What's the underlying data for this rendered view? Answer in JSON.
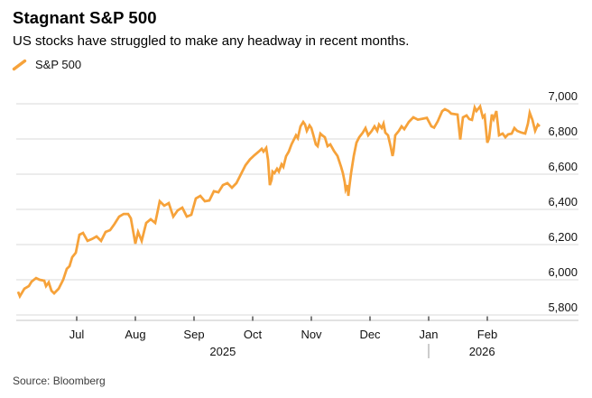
{
  "header": {
    "title": "Stagnant S&P 500",
    "subtitle": "US stocks have struggled to make any headway in recent months."
  },
  "legend": {
    "label": "S&P 500"
  },
  "footer": {
    "source": "Source: Bloomberg"
  },
  "colors": {
    "accent": "#F6A23A",
    "grid": "#D8D8D8",
    "axis_line": "#C6C6C6",
    "tick": "#2B2B2B",
    "label_text": "#111111",
    "year_text": "#767676",
    "divider": "#9B9B9B"
  },
  "chart_data": {
    "type": "line",
    "title": "Stagnant S&P 500",
    "subtitle": "US stocks have struggled to make any headway in recent months.",
    "source": "Source: Bloomberg",
    "legend_position": "top-left",
    "grid": "horizontal",
    "x_axis": {
      "unit": "months (0 = Jun 1 2025, 1 = Jul 1 2025 ... 8 = Feb 1 2026)",
      "ticks": [
        {
          "label": "Jul",
          "m": 1
        },
        {
          "label": "Aug",
          "m": 2
        },
        {
          "label": "Sep",
          "m": 3
        },
        {
          "label": "Oct",
          "m": 4
        },
        {
          "label": "Nov",
          "m": 5
        },
        {
          "label": "Dec",
          "m": 6
        },
        {
          "label": "Jan",
          "m": 7
        },
        {
          "label": "Feb",
          "m": 8
        }
      ],
      "year_labels": [
        {
          "label": "2025",
          "m": 3.49
        },
        {
          "label": "2026",
          "m": 7.91
        }
      ],
      "year_divider_m": 7.0
    },
    "y_axis": {
      "ticks": [
        {
          "value": 7000,
          "label": "7,000"
        },
        {
          "value": 6800,
          "label": "6,800"
        },
        {
          "value": 6600,
          "label": "6,600"
        },
        {
          "value": 6400,
          "label": "6,400"
        },
        {
          "value": 6200,
          "label": "6,200"
        },
        {
          "value": 6000,
          "label": "6,000"
        },
        {
          "value": 5800,
          "label": "5,800"
        }
      ],
      "range_shown": [
        5769,
        7036
      ]
    },
    "series": [
      {
        "name": "S&P 500",
        "color": "#F6A23A",
        "points": [
          [
            0.0,
            5932
          ],
          [
            0.031,
            5906
          ],
          [
            0.108,
            5949
          ],
          [
            0.185,
            5964
          ],
          [
            0.231,
            5990
          ],
          [
            0.308,
            6010
          ],
          [
            0.369,
            6000
          ],
          [
            0.446,
            5995
          ],
          [
            0.477,
            5964
          ],
          [
            0.523,
            5985
          ],
          [
            0.569,
            5938
          ],
          [
            0.615,
            5923
          ],
          [
            0.692,
            5949
          ],
          [
            0.769,
            6000
          ],
          [
            0.831,
            6062
          ],
          [
            0.877,
            6077
          ],
          [
            0.923,
            6128
          ],
          [
            0.985,
            6154
          ],
          [
            1.046,
            6256
          ],
          [
            1.108,
            6266
          ],
          [
            1.185,
            6221
          ],
          [
            1.262,
            6232
          ],
          [
            1.338,
            6246
          ],
          [
            1.415,
            6221
          ],
          [
            1.492,
            6272
          ],
          [
            1.569,
            6282
          ],
          [
            1.646,
            6318
          ],
          [
            1.723,
            6359
          ],
          [
            1.8,
            6374
          ],
          [
            1.877,
            6374
          ],
          [
            1.923,
            6349
          ],
          [
            2.0,
            6205
          ],
          [
            2.046,
            6272
          ],
          [
            2.108,
            6221
          ],
          [
            2.185,
            6323
          ],
          [
            2.262,
            6344
          ],
          [
            2.338,
            6323
          ],
          [
            2.415,
            6446
          ],
          [
            2.492,
            6421
          ],
          [
            2.569,
            6436
          ],
          [
            2.646,
            6359
          ],
          [
            2.723,
            6395
          ],
          [
            2.8,
            6410
          ],
          [
            2.877,
            6359
          ],
          [
            2.954,
            6369
          ],
          [
            3.031,
            6462
          ],
          [
            3.108,
            6477
          ],
          [
            3.185,
            6446
          ],
          [
            3.262,
            6451
          ],
          [
            3.338,
            6503
          ],
          [
            3.415,
            6497
          ],
          [
            3.492,
            6538
          ],
          [
            3.569,
            6549
          ],
          [
            3.646,
            6523
          ],
          [
            3.723,
            6549
          ],
          [
            3.8,
            6600
          ],
          [
            3.877,
            6651
          ],
          [
            3.954,
            6684
          ],
          [
            4.031,
            6708
          ],
          [
            4.108,
            6730
          ],
          [
            4.154,
            6744
          ],
          [
            4.185,
            6728
          ],
          [
            4.231,
            6749
          ],
          [
            4.262,
            6682
          ],
          [
            4.292,
            6538
          ],
          [
            4.323,
            6569
          ],
          [
            4.338,
            6615
          ],
          [
            4.369,
            6605
          ],
          [
            4.415,
            6631
          ],
          [
            4.446,
            6615
          ],
          [
            4.492,
            6656
          ],
          [
            4.523,
            6641
          ],
          [
            4.569,
            6702
          ],
          [
            4.615,
            6728
          ],
          [
            4.662,
            6769
          ],
          [
            4.708,
            6800
          ],
          [
            4.738,
            6821
          ],
          [
            4.769,
            6805
          ],
          [
            4.815,
            6872
          ],
          [
            4.862,
            6897
          ],
          [
            4.892,
            6882
          ],
          [
            4.923,
            6846
          ],
          [
            4.969,
            6877
          ],
          [
            5.0,
            6862
          ],
          [
            5.031,
            6826
          ],
          [
            5.077,
            6769
          ],
          [
            5.108,
            6759
          ],
          [
            5.154,
            6831
          ],
          [
            5.185,
            6821
          ],
          [
            5.231,
            6810
          ],
          [
            5.277,
            6759
          ],
          [
            5.323,
            6769
          ],
          [
            5.385,
            6733
          ],
          [
            5.446,
            6703
          ],
          [
            5.508,
            6641
          ],
          [
            5.538,
            6605
          ],
          [
            5.569,
            6554
          ],
          [
            5.585,
            6513
          ],
          [
            5.615,
            6538
          ],
          [
            5.631,
            6477
          ],
          [
            5.646,
            6523
          ],
          [
            5.677,
            6605
          ],
          [
            5.723,
            6703
          ],
          [
            5.769,
            6779
          ],
          [
            5.815,
            6810
          ],
          [
            5.877,
            6836
          ],
          [
            5.923,
            6862
          ],
          [
            5.969,
            6821
          ],
          [
            6.031,
            6846
          ],
          [
            6.077,
            6872
          ],
          [
            6.123,
            6846
          ],
          [
            6.154,
            6882
          ],
          [
            6.2,
            6862
          ],
          [
            6.231,
            6887
          ],
          [
            6.262,
            6836
          ],
          [
            6.308,
            6821
          ],
          [
            6.354,
            6754
          ],
          [
            6.385,
            6703
          ],
          [
            6.4,
            6728
          ],
          [
            6.431,
            6821
          ],
          [
            6.492,
            6846
          ],
          [
            6.538,
            6872
          ],
          [
            6.585,
            6856
          ],
          [
            6.662,
            6897
          ],
          [
            6.738,
            6923
          ],
          [
            6.815,
            6910
          ],
          [
            6.892,
            6915
          ],
          [
            6.969,
            6920
          ],
          [
            7.046,
            6872
          ],
          [
            7.092,
            6864
          ],
          [
            7.154,
            6900
          ],
          [
            7.231,
            6958
          ],
          [
            7.277,
            6969
          ],
          [
            7.338,
            6959
          ],
          [
            7.385,
            6944
          ],
          [
            7.492,
            6939
          ],
          [
            7.538,
            6797
          ],
          [
            7.585,
            6923
          ],
          [
            7.646,
            6934
          ],
          [
            7.692,
            6913
          ],
          [
            7.738,
            6908
          ],
          [
            7.785,
            6979
          ],
          [
            7.815,
            6959
          ],
          [
            7.877,
            6985
          ],
          [
            7.923,
            6923
          ],
          [
            7.954,
            6934
          ],
          [
            8.0,
            6779
          ],
          [
            8.031,
            6805
          ],
          [
            8.077,
            6939
          ],
          [
            8.108,
            6913
          ],
          [
            8.154,
            6959
          ],
          [
            8.2,
            6821
          ],
          [
            8.262,
            6831
          ],
          [
            8.308,
            6810
          ],
          [
            8.354,
            6826
          ],
          [
            8.415,
            6831
          ],
          [
            8.462,
            6862
          ],
          [
            8.508,
            6846
          ],
          [
            8.585,
            6836
          ],
          [
            8.646,
            6831
          ],
          [
            8.692,
            6887
          ],
          [
            8.723,
            6949
          ],
          [
            8.769,
            6908
          ],
          [
            8.815,
            6846
          ],
          [
            8.862,
            6882
          ],
          [
            8.892,
            6872
          ]
        ]
      }
    ]
  }
}
